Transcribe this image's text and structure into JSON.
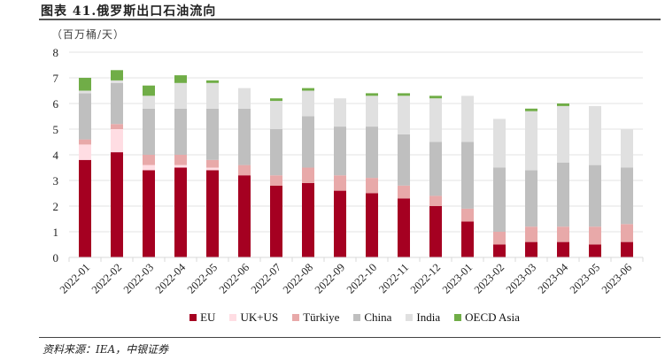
{
  "title": "图表 41.俄罗斯出口石油流向",
  "unit_label": "（百万桶/天）",
  "source": "资料来源：IEA，中银证券",
  "chart_data": {
    "type": "bar",
    "stacked": true,
    "title": "俄罗斯出口石油流向",
    "xlabel": "",
    "ylabel": "百万桶/天",
    "ylim": [
      0,
      8
    ],
    "yticks": [
      0,
      1,
      2,
      3,
      4,
      5,
      6,
      7,
      8
    ],
    "grid": true,
    "legend_position": "bottom",
    "categories": [
      "2022-01",
      "2022-02",
      "2022-03",
      "2022-04",
      "2022-05",
      "2022-06",
      "2022-07",
      "2022-08",
      "2022-09",
      "2022-10",
      "2022-11",
      "2022-12",
      "2023-01",
      "2023-02",
      "2023-03",
      "2023-04",
      "2023-05",
      "2023-06"
    ],
    "series": [
      {
        "name": "EU",
        "color": "#A50021",
        "values": [
          3.8,
          4.1,
          3.4,
          3.5,
          3.4,
          3.2,
          2.8,
          2.9,
          2.6,
          2.5,
          2.3,
          2.0,
          1.4,
          0.5,
          0.6,
          0.6,
          0.5,
          0.6
        ]
      },
      {
        "name": "UK+US",
        "color": "#FFDDE3",
        "values": [
          0.6,
          0.9,
          0.2,
          0.1,
          0.1,
          0.0,
          0.0,
          0.0,
          0.0,
          0.0,
          0.0,
          0.0,
          0.0,
          0.0,
          0.0,
          0.0,
          0.0,
          0.0
        ]
      },
      {
        "name": "Türkiye",
        "color": "#E8A9A9",
        "values": [
          0.2,
          0.2,
          0.4,
          0.4,
          0.3,
          0.4,
          0.4,
          0.6,
          0.6,
          0.6,
          0.5,
          0.4,
          0.5,
          0.5,
          0.6,
          0.6,
          0.7,
          0.7
        ]
      },
      {
        "name": "China",
        "color": "#BFBFBF",
        "values": [
          1.8,
          1.6,
          1.8,
          1.8,
          2.0,
          2.2,
          1.8,
          2.0,
          1.9,
          2.0,
          2.0,
          2.1,
          2.6,
          2.5,
          2.2,
          2.5,
          2.4,
          2.2
        ]
      },
      {
        "name": "India",
        "color": "#E0E0E0",
        "values": [
          0.1,
          0.1,
          0.5,
          1.0,
          1.0,
          0.8,
          1.1,
          1.0,
          1.1,
          1.2,
          1.5,
          1.7,
          1.8,
          1.9,
          2.3,
          2.2,
          2.3,
          1.5
        ]
      },
      {
        "name": "OECD Asia",
        "color": "#70AD47",
        "values": [
          0.5,
          0.4,
          0.4,
          0.3,
          0.1,
          0.0,
          0.1,
          0.1,
          0.0,
          0.1,
          0.1,
          0.1,
          0.0,
          0.0,
          0.1,
          0.1,
          0.0,
          0.0
        ]
      }
    ]
  }
}
